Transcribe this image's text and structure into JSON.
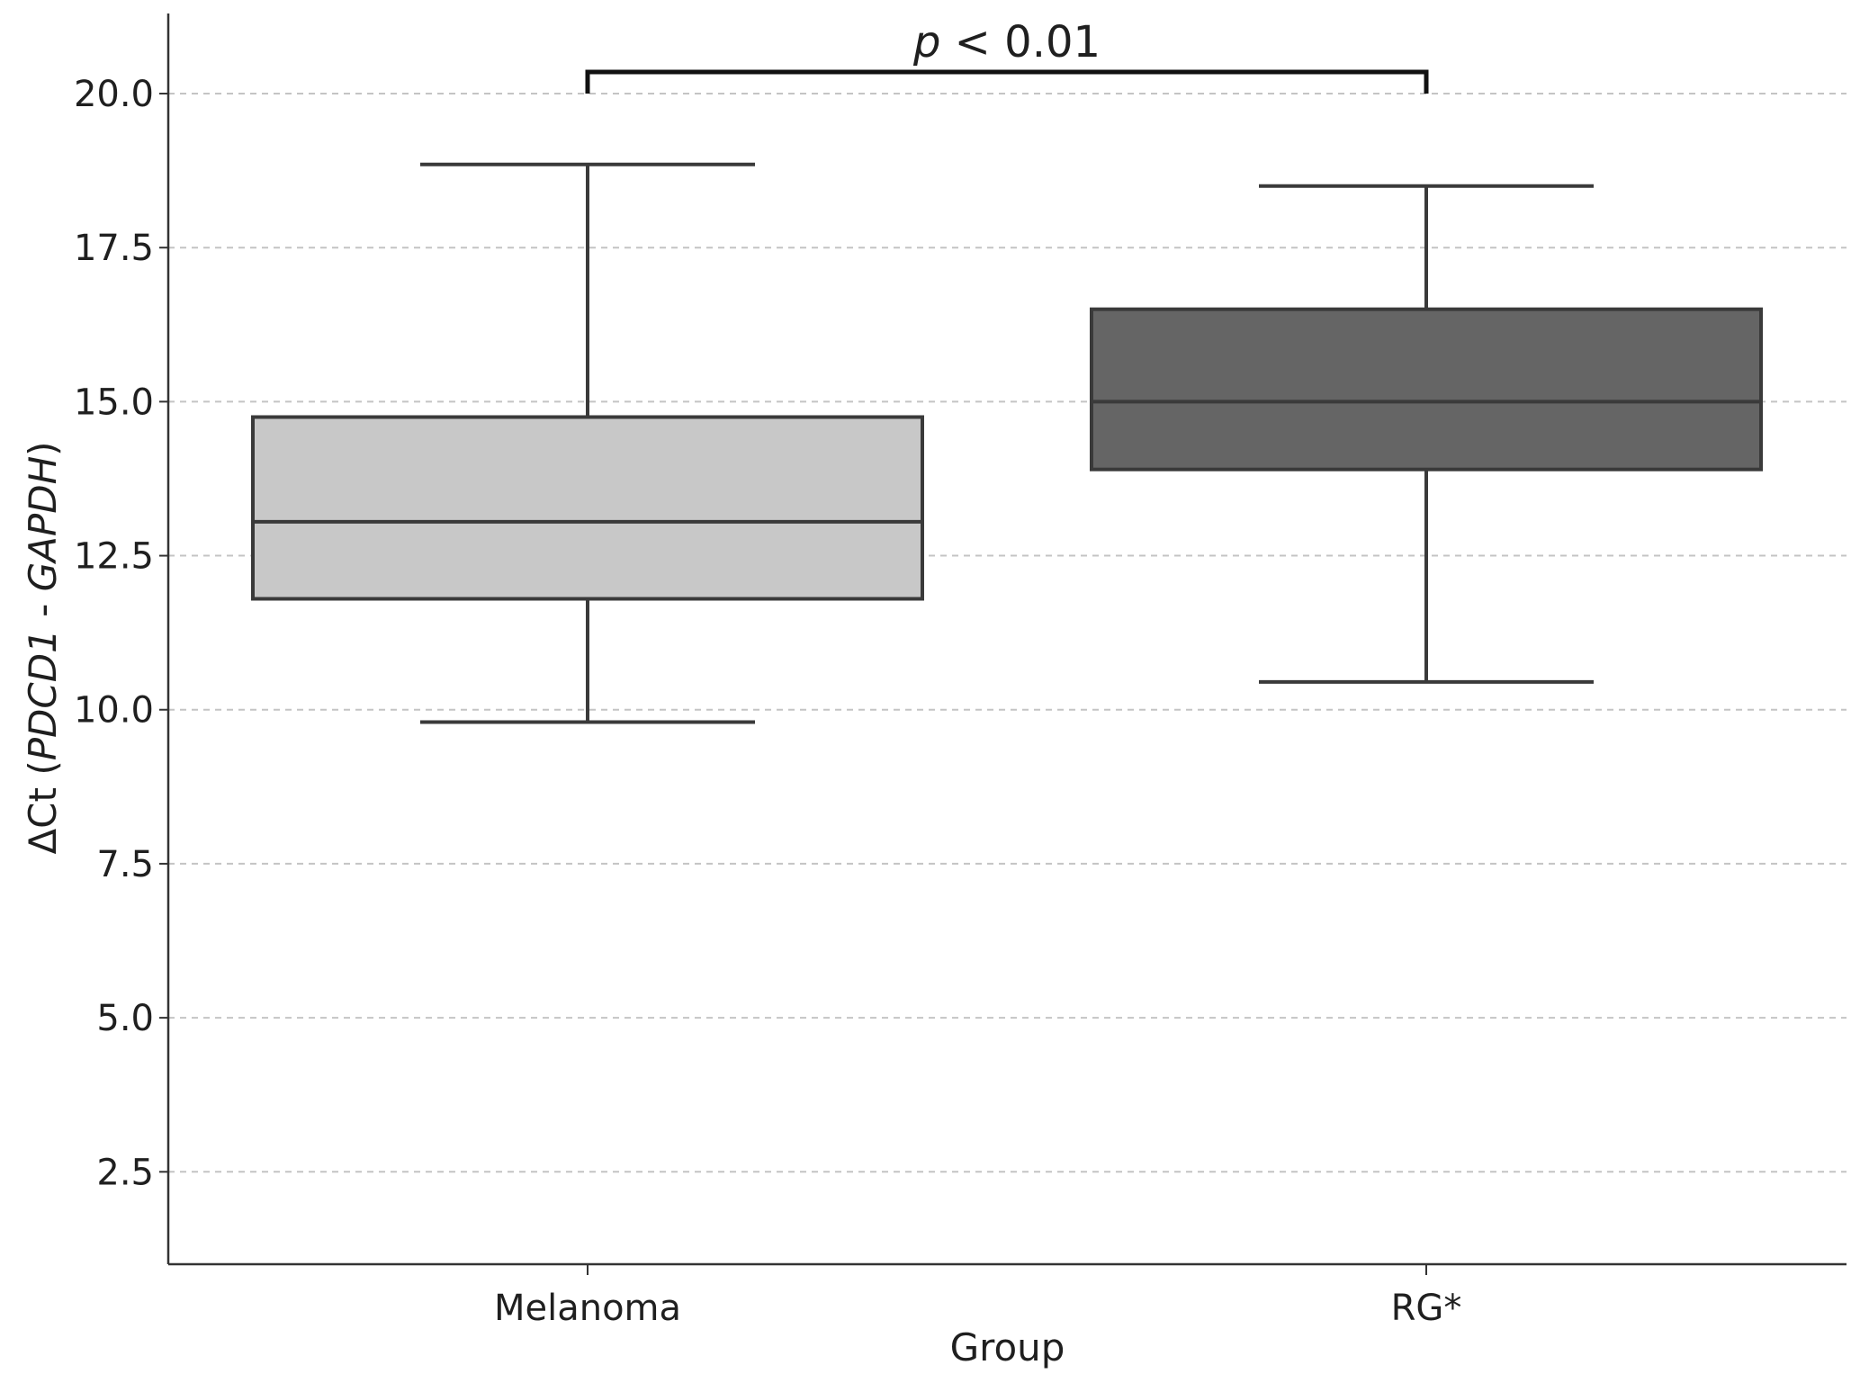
{
  "chart_data": {
    "type": "box",
    "xlabel": "Group",
    "ylabel_prefix": "ΔCt (",
    "ylabel_gene1": "PDCD1",
    "ylabel_sep": " - ",
    "ylabel_gene2": "GAPDH",
    "ylabel_suffix": ")",
    "ylim": [
      1.0,
      21.3
    ],
    "yticks": [
      "2.5",
      "5.0",
      "7.5",
      "10.0",
      "12.5",
      "15.0",
      "17.5",
      "20.0"
    ],
    "grid": "horizontal-dashed",
    "categories": [
      "Melanoma",
      "RG*"
    ],
    "boxes": [
      {
        "name": "Melanoma",
        "whisker_low": 9.8,
        "q1": 11.8,
        "median": 13.05,
        "q3": 14.75,
        "whisker_high": 18.85,
        "color": "#c8c8c8"
      },
      {
        "name": "RG*",
        "whisker_low": 10.45,
        "q1": 13.9,
        "median": 15.0,
        "q3": 16.5,
        "whisker_high": 18.5,
        "color": "#656565"
      }
    ],
    "significance": {
      "text_italic": "p",
      "text_rest": " < 0.01",
      "bracket_y": 20.35
    }
  }
}
